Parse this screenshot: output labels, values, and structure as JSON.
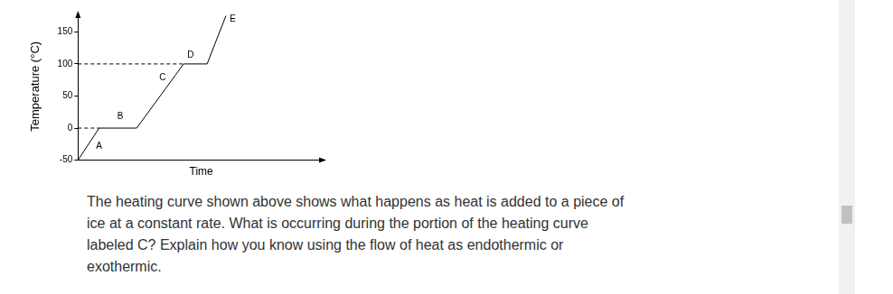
{
  "chart_data": {
    "type": "line",
    "y_label": "Temperature (°C)",
    "x_label": "Time",
    "series": [
      {
        "x": [
          0,
          9,
          25,
          45,
          55,
          63
        ],
        "values": [
          -50,
          0,
          0,
          100,
          100,
          175
        ],
        "color": "#000000",
        "line_style": "solid"
      },
      {
        "x": [
          0,
          9
        ],
        "values": [
          0,
          0
        ],
        "color": "#000000",
        "line_style": "dashed"
      },
      {
        "x": [
          0,
          45
        ],
        "values": [
          100,
          100
        ],
        "color": "#000000",
        "line_style": "dashed"
      }
    ],
    "annotations": [
      {
        "text": "A",
        "x": 9,
        "y": -28
      },
      {
        "text": "B",
        "x": 18,
        "y": 18
      },
      {
        "text": "C",
        "x": 36,
        "y": 78
      },
      {
        "text": "D",
        "x": 48,
        "y": 114
      },
      {
        "text": "E",
        "x": 66,
        "y": 170
      }
    ],
    "xlim": [
      0,
      105
    ],
    "xticks": [],
    "ylim": [
      -50,
      180
    ],
    "yticks": [
      -50,
      0,
      50,
      100,
      150
    ],
    "grid": false,
    "tick_labels": "y"
  },
  "question": {
    "lines": [
      "The heating curve shown above shows what happens as heat is added to a piece of",
      "ice at a constant rate. What is occurring during the portion of the heating curve",
      "labeled C? Explain how you know using the flow of heat as endothermic or",
      "exothermic."
    ]
  }
}
